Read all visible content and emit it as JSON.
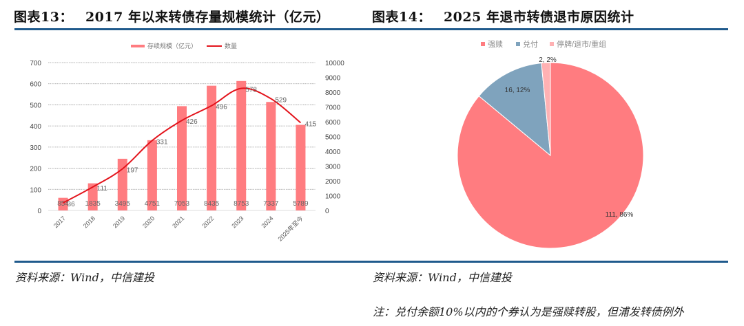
{
  "figures": [
    {
      "label": "图表13：",
      "title": "2017 年以来转债存量规模统计（亿元）",
      "source": "资料来源：Wind，中信建投"
    },
    {
      "label": "图表14：",
      "title": "2025 年退市转债退市原因统计",
      "source": "资料来源：Wind，中信建投",
      "note": "注：兑付余额10%以内的个券认为是强赎转股，但浦发转债例外"
    }
  ],
  "colors": {
    "rule": "#1f5a8c",
    "bar": "#ff7c80",
    "line": "#e3141c",
    "pie_redeem": "#ff7c80",
    "pie_pay": "#7fa3bd",
    "pie_delist": "#ffb1b3"
  },
  "chart_data": [
    {
      "type": "bar",
      "title": "2017 年以来转债存量规模统计（亿元）",
      "categories": [
        "2017",
        "2018",
        "2019",
        "2020",
        "2021",
        "2022",
        "2023",
        "2024",
        "2025年至今"
      ],
      "series": [
        {
          "name": "存续规模（亿元）",
          "type": "bar",
          "axis": "right",
          "values": [
            854,
            1835,
            3495,
            4751,
            7053,
            8435,
            8753,
            7337,
            5789
          ]
        },
        {
          "name": "数量",
          "type": "line",
          "axis": "left",
          "values": [
            36,
            111,
            197,
            331,
            426,
            496,
            578,
            529,
            415
          ]
        }
      ],
      "left_axis": {
        "ylim": [
          0,
          700
        ],
        "ticks": [
          "0",
          "100",
          "200",
          "300",
          "400",
          "500",
          "600",
          "700"
        ]
      },
      "right_axis": {
        "ylim": [
          0,
          10000
        ],
        "ticks": [
          "0",
          "1000",
          "2000",
          "3000",
          "4000",
          "5000",
          "6000",
          "7000",
          "8000",
          "9000",
          "10000"
        ]
      },
      "legend": [
        "存续规模（亿元）",
        "数量"
      ],
      "legend_position": "top",
      "grid": true,
      "xlabel": "",
      "ylabel": ""
    },
    {
      "type": "pie",
      "title": "2025 年退市转债退市原因统计",
      "categories": [
        "强赎",
        "兑付",
        "停牌/退市/重组"
      ],
      "values": [
        111,
        16,
        2
      ],
      "percents": [
        86,
        12,
        2
      ],
      "data_labels": [
        "111, 86%",
        "16, 12%",
        "2, 2%"
      ],
      "legend": [
        "强赎",
        "兑付",
        "停牌/退市/重组"
      ],
      "legend_position": "top"
    }
  ]
}
